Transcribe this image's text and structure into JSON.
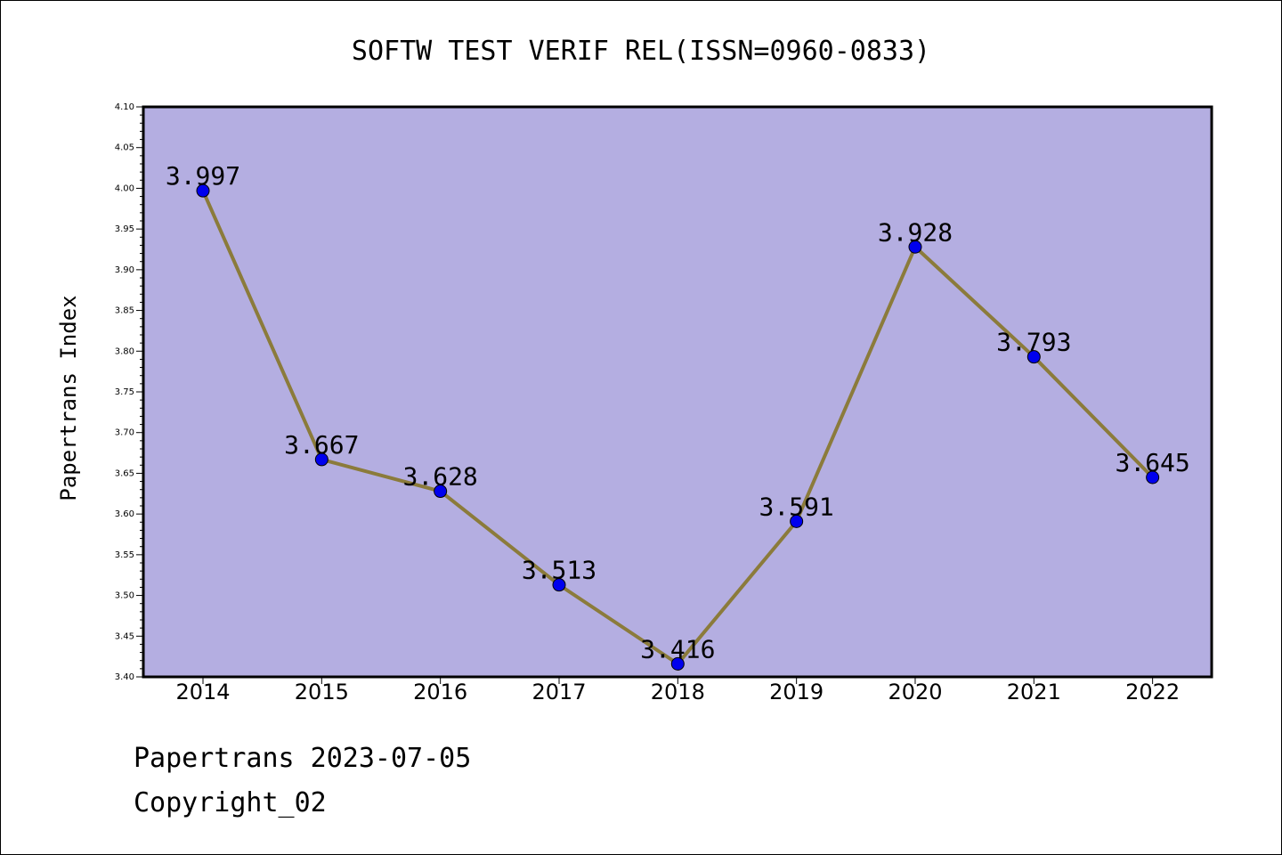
{
  "chart_data": {
    "type": "line",
    "title": "SOFTW TEST VERIF REL(ISSN=0960-0833)",
    "xlabel": "",
    "ylabel": "Papertrans Index",
    "categories": [
      "2014",
      "2015",
      "2016",
      "2017",
      "2018",
      "2019",
      "2020",
      "2021",
      "2022"
    ],
    "series": [
      {
        "values": [
          3.997,
          3.667,
          3.628,
          3.513,
          3.416,
          3.591,
          3.928,
          3.793,
          3.645
        ]
      }
    ],
    "data_labels": [
      "3.997",
      "3.667",
      "3.628",
      "3.513",
      "3.416",
      "3.591",
      "3.928",
      "3.793",
      "3.645"
    ],
    "ylim": [
      3.4,
      4.1
    ],
    "yticks": [
      "3.40",
      "3.45",
      "3.50",
      "3.55",
      "3.60",
      "3.65",
      "3.70",
      "3.75",
      "3.80",
      "3.85",
      "3.90",
      "3.95",
      "4.00",
      "4.05",
      "4.10"
    ],
    "grid": false,
    "colors": {
      "plot_bg": "#b4aee1",
      "line": "#8b7b3b",
      "marker": "#0000ee",
      "frame": "#000000"
    }
  },
  "footer": {
    "line1": "Papertrans 2023-07-05",
    "line2": "Copyright_02"
  }
}
